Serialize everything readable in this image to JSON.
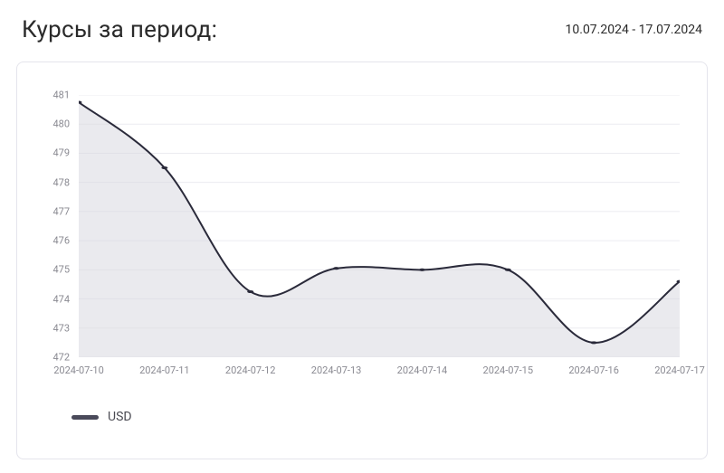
{
  "header": {
    "title": "Курсы за период:",
    "date_range": "10.07.2024 - 17.07.2024"
  },
  "chart": {
    "type": "area",
    "series_name": "USD",
    "x_labels": [
      "2024-07-10",
      "2024-07-11",
      "2024-07-12",
      "2024-07-13",
      "2024-07-14",
      "2024-07-15",
      "2024-07-16",
      "2024-07-17"
    ],
    "values": [
      480.75,
      478.5,
      474.25,
      475.05,
      475.0,
      475.0,
      472.5,
      474.6
    ],
    "ylim": [
      472,
      481
    ],
    "ytick_step": 1,
    "line_color": "#2a2a3a",
    "line_width": 2,
    "marker_color": "#2a2a3a",
    "marker_radius": 3.5,
    "fill_color": "#d9d9e0",
    "fill_opacity": 0.55,
    "grid_color": "#ececf0",
    "background_color": "#ffffff",
    "panel_border_color": "#e4e4ec",
    "axis_label_color": "#8a8a92",
    "axis_label_fontsize": 11,
    "legend_swatch_color": "#4a4a5a",
    "curve_tension": 0.35
  }
}
